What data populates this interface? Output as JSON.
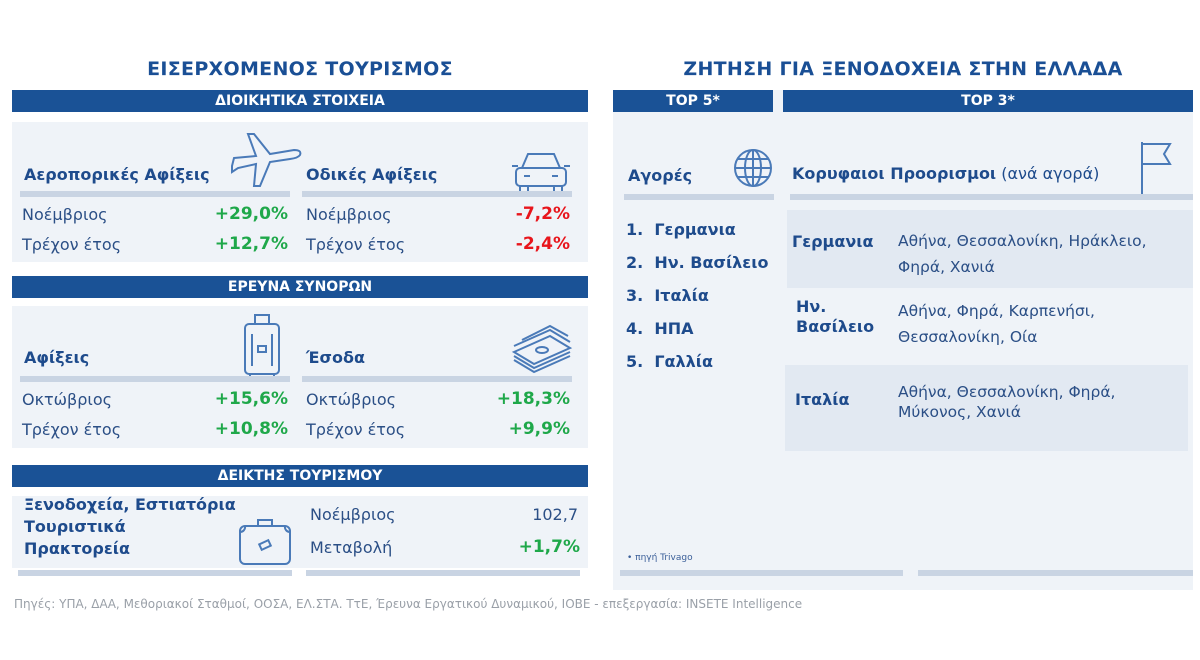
{
  "left": {
    "title": "ΕΙΣΕΡΧΟΜΕΝΟΣ ΤΟΥΡΙΣΜΟΣ",
    "admin": {
      "header": "ΔΙΟΙΚΗΤΙΚΑ ΣΤΟΙΧΕΙΑ",
      "air": {
        "label": "Αεροπορικές Αφίξεις",
        "icon": "airplane-icon",
        "rows": [
          {
            "label": "Νοέμβριος",
            "value": "+29,0%"
          },
          {
            "label": "Τρέχον έτος",
            "value": "+12,7%"
          }
        ]
      },
      "road": {
        "label": "Οδικές Αφίξεις",
        "icon": "car-icon",
        "rows": [
          {
            "label": "Νοέμβριος",
            "value": "-7,2%"
          },
          {
            "label": "Τρέχον έτος",
            "value": "-2,4%"
          }
        ]
      }
    },
    "border": {
      "header": "ΕΡΕΥΝΑ ΣΥΝΟΡΩΝ",
      "arrivals": {
        "label": "Αφίξεις",
        "icon": "suitcase-icon",
        "rows": [
          {
            "label": "Οκτώβριος",
            "value": "+15,6%"
          },
          {
            "label": "Τρέχον έτος",
            "value": "+10,8%"
          }
        ]
      },
      "revenue": {
        "label": "Έσοδα",
        "icon": "money-icon",
        "rows": [
          {
            "label": "Οκτώβριος",
            "value": "+18,3%"
          },
          {
            "label": "Τρέχον έτος",
            "value": "+9,9%"
          }
        ]
      }
    },
    "index": {
      "header": "ΔΕΙΚΤΗΣ ΤΟΥΡΙΣΜΟΥ",
      "label_lines": [
        "Ξενοδοχεία, Εστιατόρια",
        "Τουριστικά",
        "Πρακτορεία"
      ],
      "icon": "briefcase-icon",
      "rows": [
        {
          "label": "Νοέμβριος",
          "value": "102,7"
        },
        {
          "label": "Μεταβολή",
          "value": "+1,7%"
        }
      ]
    }
  },
  "right": {
    "title": "ΖΗΤΗΣΗ ΓΙΑ ΞΕΝΟΔΟΧΕΙΑ ΣΤΗΝ ΕΛΛΑΔΑ",
    "top5": {
      "header": "TOP 5*",
      "label": "Αγορές",
      "icon": "globe-icon",
      "items": [
        "1.  Γερμανια",
        "2.  Ην. Βασίλειο",
        "3.  Ιταλία",
        "4.  ΗΠΑ",
        "5.  Γαλλία"
      ]
    },
    "top3": {
      "header": "TOP 3*",
      "label": "Κορυφαιοι Προορισμοι",
      "label_suffix": "(ανά αγορά)",
      "icon": "flag-icon",
      "rows": [
        {
          "country": "Γερμανια",
          "dest1": "Αθήνα, Θεσσαλονίκη, Ηράκλειο,",
          "dest2": "Φηρά, Χανιά"
        },
        {
          "country": "Ην. Βασίλειο",
          "dest1": "Αθήνα, Φηρά, Καρπενήσι,",
          "dest2": "Θεσσαλονίκη, Οία"
        },
        {
          "country": "Ιταλία",
          "dest1": "Αθήνα, Θεσσαλονίκη, Φηρά,",
          "dest2": "Μύκονος, Χανιά"
        }
      ]
    },
    "source_note": "• πηγή Trivago"
  },
  "footer": "Πηγές: ΥΠΑ, ΔΑΑ, Μεθοριακοί Σταθμοί, ΟΟΣΑ, ΕΛ.ΣΤΑ. ΤτΕ, Έρευνα Εργατικού Δυναμικού, ΙΟΒΕ - επεξεργασία: INSETE Intelligence",
  "colors": {
    "header": "#1a5296",
    "positive": "#1fa84a",
    "negative": "#e8151c",
    "panel": "#eff3f8"
  }
}
